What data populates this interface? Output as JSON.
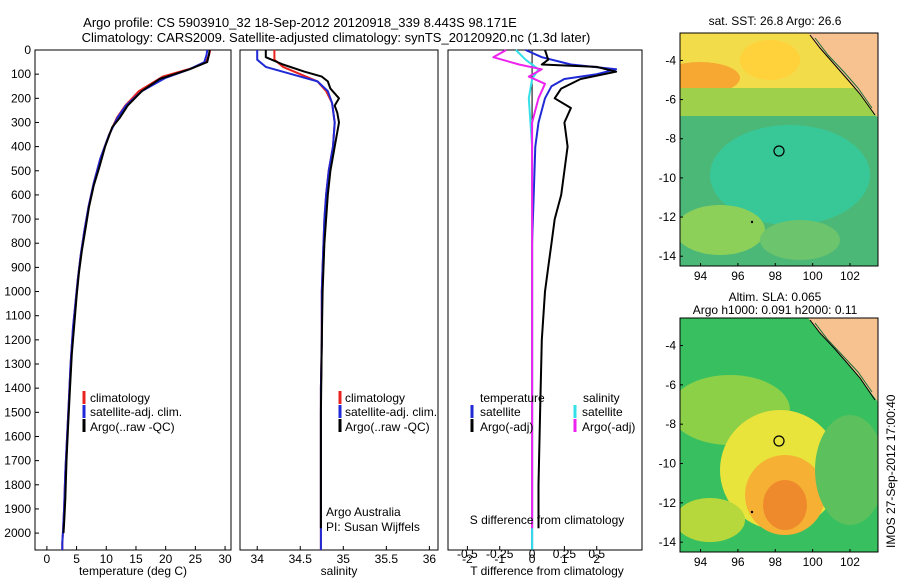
{
  "title": {
    "line1": "Argo profile: CS 5903910_32 18-Sep-2012 20120918_339 8.443S 98.171E",
    "line2": "Climatology: CARS2009. Satellite-adjusted climatology: synTS_20120920.nc (1.3d later)"
  },
  "watermark": "IMOS 27-Sep-2012 17:00:40",
  "colors": {
    "climatology": "#e8231f",
    "satellite": "#1f2ad6",
    "argo": "#000000",
    "sat_salinity": "#33e0e8",
    "argo_salinity": "#ee22ee",
    "land": "#f7c28f"
  },
  "chart_data": [
    {
      "type": "line",
      "name": "temperature",
      "xlabel": "temperature (deg C)",
      "ylabel": "",
      "xlim": [
        -2,
        31
      ],
      "ylim": [
        2070,
        0
      ],
      "xticks": [
        "0",
        "5",
        "10",
        "15",
        "20",
        "25",
        "30"
      ],
      "yticks": [
        "0",
        "100",
        "200",
        "300",
        "400",
        "500",
        "600",
        "700",
        "800",
        "900",
        "1000",
        "1100",
        "1200",
        "1300",
        "1400",
        "1500",
        "1600",
        "1700",
        "1800",
        "1900",
        "2000"
      ],
      "legend": [
        "climatology",
        "satellite-adj. clim.",
        "Argo(..raw -QC)"
      ],
      "series": [
        {
          "name": "climatology",
          "color": "#e8231f",
          "x": [
            27.5,
            27.3,
            26.8,
            24.5,
            19.5,
            15.5,
            13.2,
            11.8,
            10.5,
            9.0,
            7.9,
            7.0,
            6.3,
            5.7,
            5.2,
            4.8,
            4.4,
            4.0,
            3.7,
            3.4,
            3.1,
            2.9,
            2.7,
            2.6,
            2.6
          ],
          "y": [
            0,
            20,
            50,
            75,
            110,
            170,
            230,
            280,
            350,
            450,
            550,
            650,
            750,
            850,
            950,
            1050,
            1150,
            1300,
            1450,
            1600,
            1750,
            1900,
            2000,
            2040,
            2070
          ]
        },
        {
          "name": "satellite-adj. clim.",
          "color": "#1f2ad6",
          "x": [
            27.0,
            26.9,
            26.5,
            24.0,
            20.0,
            16.0,
            13.3,
            11.9,
            10.5,
            9.0,
            7.9,
            7.0,
            6.3,
            5.7,
            5.2,
            4.8,
            4.4,
            4.0,
            3.7,
            3.4,
            3.1,
            2.9,
            2.7,
            2.6,
            2.6
          ],
          "y": [
            0,
            20,
            50,
            80,
            115,
            170,
            230,
            280,
            350,
            450,
            550,
            650,
            750,
            850,
            950,
            1050,
            1150,
            1300,
            1450,
            1600,
            1750,
            1900,
            2000,
            2040,
            2070
          ]
        },
        {
          "name": "Argo(..raw -QC)",
          "color": "#000000",
          "x": [
            27.4,
            27.3,
            27.0,
            24.0,
            19.0,
            16.0,
            13.6,
            12.3,
            11.0,
            9.8,
            8.9,
            7.9,
            7.1,
            6.5,
            5.9,
            5.4,
            5.0,
            4.6,
            4.2,
            3.9,
            3.6,
            3.3,
            3.1,
            2.9,
            2.8
          ],
          "y": [
            0,
            20,
            50,
            80,
            120,
            170,
            230,
            280,
            320,
            400,
            480,
            560,
            650,
            740,
            830,
            920,
            1020,
            1140,
            1260,
            1400,
            1540,
            1700,
            1860,
            1960,
            2000
          ]
        }
      ]
    },
    {
      "type": "line",
      "name": "salinity",
      "xlabel": "salinity",
      "xlim": [
        33.8,
        36.1
      ],
      "ylim": [
        2070,
        0
      ],
      "xticks": [
        "34",
        "34.5",
        "35",
        "35.5",
        "36"
      ],
      "legend": [
        "climatology",
        "satellite-adj. clim.",
        "Argo(..raw -QC)"
      ],
      "annotation": [
        "Argo Australia",
        "PI: Susan Wijffels"
      ],
      "series": [
        {
          "name": "climatology",
          "color": "#e8231f",
          "x": [
            34.2,
            34.2,
            34.3,
            34.5,
            34.7,
            34.8,
            34.87,
            34.9,
            34.88,
            34.83,
            34.8,
            34.78,
            34.77,
            34.76,
            34.75,
            34.75,
            34.74,
            34.74,
            34.74,
            34.74
          ],
          "y": [
            0,
            40,
            70,
            100,
            130,
            170,
            220,
            300,
            400,
            500,
            600,
            700,
            800,
            900,
            1000,
            1200,
            1400,
            1600,
            1800,
            2070
          ]
        },
        {
          "name": "satellite-adj. clim.",
          "color": "#1f2ad6",
          "x": [
            34.0,
            34.0,
            34.1,
            34.4,
            34.7,
            34.82,
            34.87,
            34.9,
            34.88,
            34.83,
            34.8,
            34.78,
            34.77,
            34.76,
            34.75,
            34.75,
            34.74,
            34.74,
            34.74,
            34.74
          ],
          "y": [
            0,
            40,
            70,
            100,
            130,
            170,
            220,
            300,
            400,
            500,
            600,
            700,
            800,
            900,
            1000,
            1200,
            1400,
            1600,
            1800,
            2070
          ]
        },
        {
          "name": "Argo(..raw -QC)",
          "color": "#000000",
          "x": [
            34.1,
            34.1,
            34.3,
            34.55,
            34.75,
            34.82,
            34.85,
            34.95,
            34.9,
            34.93,
            34.95,
            34.9,
            34.85,
            34.82,
            34.8,
            34.78,
            34.77,
            34.76,
            34.75,
            34.74,
            34.74
          ],
          "y": [
            0,
            30,
            60,
            90,
            110,
            130,
            160,
            200,
            230,
            260,
            300,
            400,
            500,
            600,
            700,
            800,
            900,
            1000,
            1200,
            1500,
            1980
          ]
        }
      ]
    },
    {
      "type": "line",
      "name": "difference",
      "xlabel": "T difference from climatology",
      "xlabel2": "S difference from climatology",
      "xlim": [
        -2.6,
        3.4
      ],
      "ylim": [
        2070,
        0
      ],
      "xticks": [
        "-2",
        "-1",
        "0",
        "1",
        "2"
      ],
      "sticks": [
        "-0.5",
        "-0.25",
        "0",
        "0.25",
        "0.5"
      ],
      "legend_titles": [
        "temperature",
        "salinity"
      ],
      "legend_left": [
        "satellite",
        "Argo(-adj)"
      ],
      "legend_right": [
        "satellite",
        "Argo(-adj)"
      ],
      "series": [
        {
          "name": "temperature satellite",
          "color": "#1f2ad6",
          "x": [
            -0.2,
            0.3,
            1.2,
            2.6,
            2.0,
            1.0,
            0.6,
            0.4,
            0.2,
            0.1,
            0.05,
            0.0,
            0.0,
            0.0,
            0.0,
            0.0
          ],
          "y": [
            0,
            30,
            60,
            80,
            100,
            120,
            150,
            200,
            300,
            400,
            600,
            800,
            1000,
            1400,
            1800,
            2070
          ]
        },
        {
          "name": "temperature Argo(-adj)",
          "color": "#000000",
          "x": [
            0.4,
            0.5,
            0.3,
            2.0,
            2.6,
            1.5,
            0.9,
            0.7,
            1.2,
            1.0,
            1.1,
            1.0,
            0.9,
            0.7,
            0.6,
            0.5,
            0.4,
            0.3,
            0.25,
            0.2,
            0.2
          ],
          "y": [
            0,
            40,
            60,
            70,
            90,
            120,
            160,
            200,
            240,
            300,
            400,
            500,
            600,
            700,
            800,
            900,
            1000,
            1200,
            1500,
            1800,
            1980
          ]
        },
        {
          "name": "salinity satellite",
          "color": "#33e0e8",
          "x": [
            -0.5,
            -0.2,
            0.2,
            0.0,
            -0.1,
            0.0,
            0.0,
            0.0,
            0.0
          ],
          "y": [
            0,
            40,
            80,
            120,
            200,
            400,
            800,
            1400,
            2070
          ]
        },
        {
          "name": "salinity Argo(-adj)",
          "color": "#ee22ee",
          "x": [
            -0.8,
            -1.2,
            -0.4,
            0.3,
            -0.1,
            0.4,
            0.2,
            0.0,
            0.0,
            0.0,
            0.0
          ],
          "y": [
            0,
            30,
            60,
            80,
            110,
            140,
            200,
            300,
            600,
            1200,
            1980
          ]
        }
      ]
    }
  ],
  "maps": [
    {
      "title": "sat. SST: 26.8  Argo: 26.6",
      "xticks": [
        "94",
        "96",
        "98",
        "100",
        "102"
      ],
      "yticks": [
        "-4",
        "-6",
        "-8",
        "-10",
        "-12",
        "-14"
      ]
    },
    {
      "title_line1": "Altim. SLA: 0.065",
      "title_line2": "Argo h1000: 0.091  h2000: 0.11",
      "xticks": [
        "94",
        "96",
        "98",
        "100",
        "102"
      ],
      "yticks": [
        "-4",
        "-6",
        "-8",
        "-10",
        "-12",
        "-14"
      ]
    }
  ]
}
